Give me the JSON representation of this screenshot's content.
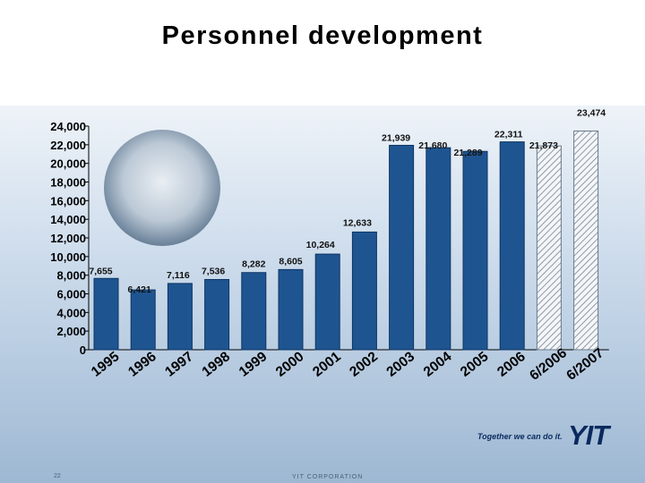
{
  "title": "Personnel development",
  "footer": {
    "page_number": "22",
    "corporation": "YIT CORPORATION",
    "slogan": "Together we can do it.",
    "logo": "YIT"
  },
  "photo": {
    "icon": "group-photo-icon"
  },
  "colors": {
    "bar": "#1e5591",
    "bar_edge": "#0d3563",
    "hatch": "#8d9aa8",
    "logo": "#0a2a5e"
  },
  "chart_data": {
    "type": "bar",
    "title": "",
    "xlabel": "",
    "ylabel": "",
    "ylim": [
      0,
      24000
    ],
    "yticks": [
      0,
      2000,
      4000,
      6000,
      8000,
      10000,
      12000,
      14000,
      16000,
      18000,
      20000,
      22000,
      24000
    ],
    "ytick_labels": [
      "0",
      "2,000",
      "4,000",
      "6,000",
      "8,000",
      "10,000",
      "12,000",
      "14,000",
      "16,000",
      "18,000",
      "20,000",
      "22,000",
      "24,000"
    ],
    "categories": [
      "1995",
      "1996",
      "1997",
      "1998",
      "1999",
      "2000",
      "2001",
      "2002",
      "2003",
      "2004",
      "2005",
      "2006",
      "6/2006",
      "6/2007"
    ],
    "values": [
      7655,
      6421,
      7116,
      7536,
      8282,
      8605,
      10264,
      12633,
      21939,
      21680,
      21289,
      22311,
      21873,
      23474
    ],
    "labels": [
      "7,655",
      "6,421",
      "7,116",
      "7,536",
      "8,282",
      "8,605",
      "10,264",
      "12,633",
      "21,939",
      "21,680",
      "21,289",
      "22,311",
      "21,873",
      "23,474"
    ],
    "hatched": [
      false,
      false,
      false,
      false,
      false,
      false,
      false,
      false,
      false,
      false,
      false,
      false,
      true,
      true
    ],
    "grid": false
  }
}
